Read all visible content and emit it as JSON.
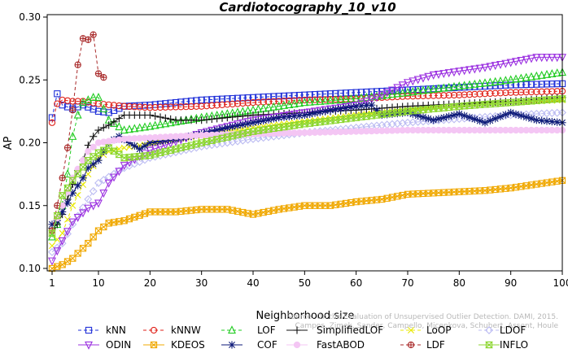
{
  "chart_data": {
    "type": "line",
    "title": "Cardiotocography_10_v10",
    "xlabel": "Neighborhood size",
    "ylabel": "AP",
    "xlim": [
      1,
      100
    ],
    "ylim": [
      0.1,
      0.3
    ],
    "x_ticks": [
      1,
      10,
      20,
      30,
      40,
      50,
      60,
      70,
      80,
      90,
      100
    ],
    "y_ticks": [
      "0.10",
      "0.15",
      "0.20",
      "0.25",
      "0.30"
    ],
    "grid": false,
    "legend_position": "bottom",
    "watermark": [
      "Source: On the Evaluation of Unsupervised Outlier Detection. DAMI, 2015.",
      "Campos, Zimek, Sander, Campello, Micenkova, Schubert, Assent, Houle"
    ],
    "series": [
      {
        "name": "kNN",
        "color": "#1f2fd8",
        "marker": "square",
        "dash": "4,3",
        "points": [
          [
            1,
            0.22
          ],
          [
            2,
            0.239
          ],
          [
            3,
            0.23
          ],
          [
            5,
            0.227
          ],
          [
            7,
            0.23
          ],
          [
            10,
            0.225
          ],
          [
            12,
            0.224
          ],
          [
            15,
            0.229
          ],
          [
            20,
            0.23
          ],
          [
            30,
            0.234
          ],
          [
            40,
            0.236
          ],
          [
            50,
            0.238
          ],
          [
            60,
            0.24
          ],
          [
            70,
            0.242
          ],
          [
            80,
            0.244
          ],
          [
            90,
            0.246
          ],
          [
            100,
            0.247
          ]
        ]
      },
      {
        "name": "kNNW",
        "color": "#e0221a",
        "marker": "circle",
        "dash": "4,3",
        "points": [
          [
            1,
            0.216
          ],
          [
            2,
            0.231
          ],
          [
            3,
            0.234
          ],
          [
            5,
            0.233
          ],
          [
            7,
            0.233
          ],
          [
            10,
            0.231
          ],
          [
            15,
            0.229
          ],
          [
            20,
            0.228
          ],
          [
            30,
            0.229
          ],
          [
            40,
            0.232
          ],
          [
            50,
            0.234
          ],
          [
            60,
            0.235
          ],
          [
            70,
            0.237
          ],
          [
            80,
            0.238
          ],
          [
            90,
            0.24
          ],
          [
            100,
            0.241
          ]
        ]
      },
      {
        "name": "LOF",
        "color": "#22cc22",
        "marker": "triangle",
        "dash": "4,3",
        "points": [
          [
            1,
            0.125
          ],
          [
            2,
            0.135
          ],
          [
            3,
            0.15
          ],
          [
            4,
            0.175
          ],
          [
            5,
            0.205
          ],
          [
            6,
            0.222
          ],
          [
            7,
            0.232
          ],
          [
            9,
            0.236
          ],
          [
            10,
            0.236
          ],
          [
            12,
            0.218
          ],
          [
            15,
            0.21
          ],
          [
            20,
            0.213
          ],
          [
            30,
            0.22
          ],
          [
            40,
            0.226
          ],
          [
            50,
            0.232
          ],
          [
            60,
            0.235
          ],
          [
            70,
            0.24
          ],
          [
            80,
            0.245
          ],
          [
            90,
            0.25
          ],
          [
            100,
            0.256
          ]
        ]
      },
      {
        "name": "SimplifiedLOF",
        "color": "#111111",
        "marker": "plus",
        "dash": "",
        "points": [
          [
            1,
            0.132
          ],
          [
            2,
            0.135
          ],
          [
            3,
            0.143
          ],
          [
            4,
            0.155
          ],
          [
            5,
            0.167
          ],
          [
            6,
            0.178
          ],
          [
            7,
            0.186
          ],
          [
            8,
            0.198
          ],
          [
            9,
            0.205
          ],
          [
            10,
            0.21
          ],
          [
            12,
            0.214
          ],
          [
            15,
            0.222
          ],
          [
            20,
            0.222
          ],
          [
            25,
            0.218
          ],
          [
            30,
            0.218
          ],
          [
            40,
            0.222
          ],
          [
            50,
            0.224
          ],
          [
            60,
            0.226
          ],
          [
            70,
            0.229
          ],
          [
            80,
            0.231
          ],
          [
            90,
            0.233
          ],
          [
            100,
            0.236
          ]
        ]
      },
      {
        "name": "LoOP",
        "color": "#e8e800",
        "marker": "x",
        "dash": "4,3",
        "points": [
          [
            1,
            0.118
          ],
          [
            3,
            0.128
          ],
          [
            5,
            0.15
          ],
          [
            8,
            0.175
          ],
          [
            10,
            0.188
          ],
          [
            12,
            0.193
          ],
          [
            15,
            0.196
          ],
          [
            20,
            0.199
          ],
          [
            30,
            0.206
          ],
          [
            40,
            0.212
          ],
          [
            50,
            0.217
          ],
          [
            60,
            0.222
          ],
          [
            70,
            0.226
          ],
          [
            80,
            0.229
          ],
          [
            90,
            0.232
          ],
          [
            100,
            0.234
          ]
        ]
      },
      {
        "name": "LDOF",
        "color": "#bcbcf2",
        "marker": "diamond",
        "dash": "4,3",
        "points": [
          [
            1,
            0.113
          ],
          [
            3,
            0.12
          ],
          [
            5,
            0.135
          ],
          [
            8,
            0.155
          ],
          [
            10,
            0.168
          ],
          [
            15,
            0.18
          ],
          [
            20,
            0.188
          ],
          [
            30,
            0.197
          ],
          [
            40,
            0.203
          ],
          [
            50,
            0.208
          ],
          [
            60,
            0.212
          ],
          [
            70,
            0.216
          ],
          [
            80,
            0.219
          ],
          [
            90,
            0.222
          ],
          [
            100,
            0.224
          ]
        ]
      },
      {
        "name": "ODIN",
        "color": "#9b30e0",
        "marker": "triangle-down",
        "dash": "",
        "points": [
          [
            1,
            0.106
          ],
          [
            3,
            0.122
          ],
          [
            5,
            0.137
          ],
          [
            8,
            0.148
          ],
          [
            10,
            0.152
          ],
          [
            12,
            0.168
          ],
          [
            15,
            0.182
          ],
          [
            20,
            0.194
          ],
          [
            30,
            0.208
          ],
          [
            40,
            0.218
          ],
          [
            50,
            0.224
          ],
          [
            60,
            0.23
          ],
          [
            65,
            0.238
          ],
          [
            70,
            0.248
          ],
          [
            75,
            0.254
          ],
          [
            80,
            0.257
          ],
          [
            85,
            0.26
          ],
          [
            90,
            0.264
          ],
          [
            95,
            0.268
          ],
          [
            100,
            0.268
          ]
        ]
      },
      {
        "name": "KDEOS",
        "color": "#f0a800",
        "marker": "square-x",
        "dash": "",
        "points": [
          [
            1,
            0.1
          ],
          [
            3,
            0.103
          ],
          [
            5,
            0.108
          ],
          [
            8,
            0.12
          ],
          [
            10,
            0.13
          ],
          [
            12,
            0.136
          ],
          [
            15,
            0.138
          ],
          [
            20,
            0.145
          ],
          [
            25,
            0.145
          ],
          [
            30,
            0.147
          ],
          [
            35,
            0.147
          ],
          [
            40,
            0.143
          ],
          [
            45,
            0.147
          ],
          [
            50,
            0.15
          ],
          [
            55,
            0.15
          ],
          [
            60,
            0.153
          ],
          [
            65,
            0.155
          ],
          [
            70,
            0.159
          ],
          [
            75,
            0.16
          ],
          [
            80,
            0.161
          ],
          [
            85,
            0.162
          ],
          [
            90,
            0.164
          ],
          [
            95,
            0.167
          ],
          [
            100,
            0.17
          ]
        ]
      },
      {
        "name": "COF",
        "color": "#0d1a78",
        "marker": "star",
        "dash": "",
        "points": [
          [
            1,
            0.135
          ],
          [
            2,
            0.138
          ],
          [
            3,
            0.145
          ],
          [
            4,
            0.152
          ],
          [
            5,
            0.16
          ],
          [
            7,
            0.172
          ],
          [
            8,
            0.18
          ],
          [
            10,
            0.186
          ],
          [
            12,
            0.2
          ],
          [
            14,
            0.205
          ],
          [
            16,
            0.2
          ],
          [
            18,
            0.195
          ],
          [
            20,
            0.2
          ],
          [
            25,
            0.203
          ],
          [
            30,
            0.207
          ],
          [
            35,
            0.212
          ],
          [
            40,
            0.216
          ],
          [
            45,
            0.22
          ],
          [
            50,
            0.222
          ],
          [
            55,
            0.226
          ],
          [
            60,
            0.229
          ],
          [
            63,
            0.23
          ],
          [
            65,
            0.222
          ],
          [
            70,
            0.224
          ],
          [
            75,
            0.218
          ],
          [
            80,
            0.223
          ],
          [
            85,
            0.216
          ],
          [
            90,
            0.224
          ],
          [
            95,
            0.218
          ],
          [
            100,
            0.216
          ]
        ]
      },
      {
        "name": "FastABOD",
        "color": "#f4c6f4",
        "marker": "circle-fill",
        "dash": "",
        "points": [
          [
            1,
            0.13
          ],
          [
            3,
            0.15
          ],
          [
            5,
            0.172
          ],
          [
            8,
            0.193
          ],
          [
            10,
            0.2
          ],
          [
            15,
            0.203
          ],
          [
            20,
            0.204
          ],
          [
            30,
            0.206
          ],
          [
            40,
            0.207
          ],
          [
            50,
            0.208
          ],
          [
            60,
            0.209
          ],
          [
            70,
            0.21
          ],
          [
            80,
            0.21
          ],
          [
            90,
            0.21
          ],
          [
            100,
            0.21
          ]
        ]
      },
      {
        "name": "LDF",
        "color": "#a82828",
        "marker": "circle-plus",
        "dash": "4,3",
        "points": [
          [
            1,
            0.13
          ],
          [
            2,
            0.15
          ],
          [
            3,
            0.172
          ],
          [
            4,
            0.196
          ],
          [
            5,
            0.226
          ],
          [
            6,
            0.262
          ],
          [
            7,
            0.283
          ],
          [
            8,
            0.282
          ],
          [
            9,
            0.286
          ],
          [
            10,
            0.255
          ],
          [
            11,
            0.252
          ]
        ]
      },
      {
        "name": "INFLO",
        "color": "#8cd630",
        "marker": "hourglass",
        "dash": "",
        "points": [
          [
            1,
            0.128
          ],
          [
            2,
            0.142
          ],
          [
            3,
            0.158
          ],
          [
            5,
            0.17
          ],
          [
            8,
            0.186
          ],
          [
            10,
            0.192
          ],
          [
            12,
            0.196
          ],
          [
            15,
            0.188
          ],
          [
            20,
            0.19
          ],
          [
            30,
            0.2
          ],
          [
            40,
            0.209
          ],
          [
            50,
            0.215
          ],
          [
            60,
            0.22
          ],
          [
            70,
            0.225
          ],
          [
            80,
            0.229
          ],
          [
            90,
            0.232
          ],
          [
            100,
            0.235
          ]
        ]
      }
    ]
  }
}
